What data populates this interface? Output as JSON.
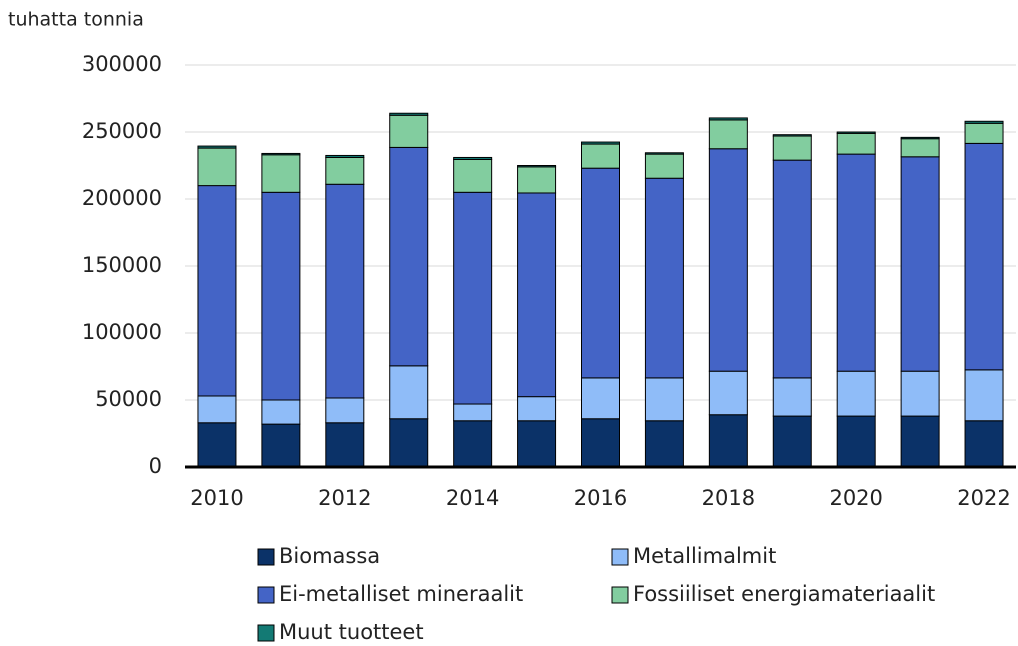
{
  "chart_data": {
    "type": "bar",
    "stacked": true,
    "y_label": "tuhatta tonnia",
    "categories": [
      "2010",
      null,
      "2012",
      null,
      "2014",
      null,
      "2016",
      null,
      "2018",
      null,
      "2020",
      null,
      "2022"
    ],
    "series": [
      {
        "name": "Biomassa",
        "color": "#0b3268",
        "values": [
          33000,
          32000,
          33000,
          36000,
          34500,
          34500,
          36000,
          34500,
          39000,
          38000,
          38000,
          38000,
          34500
        ]
      },
      {
        "name": "Metallimalmit",
        "color": "#8fbcf8",
        "values": [
          20000,
          18000,
          18500,
          39500,
          12500,
          18000,
          30500,
          32000,
          32500,
          28500,
          33500,
          33500,
          38000
        ]
      },
      {
        "name": "Ei-metalliset mineraalit",
        "color": "#4464c6",
        "values": [
          157000,
          155000,
          159500,
          163000,
          158000,
          152000,
          156500,
          149000,
          166000,
          162500,
          162000,
          160000,
          169000
        ]
      },
      {
        "name": "Fossiiliset energiamateriaalit",
        "color": "#82cd9f",
        "values": [
          28000,
          28000,
          20000,
          24000,
          24500,
          19500,
          18000,
          18000,
          21500,
          18000,
          15500,
          13500,
          15000
        ]
      },
      {
        "name": "Muut tuotteet",
        "color": "#137a74",
        "values": [
          1500,
          1000,
          1500,
          1500,
          1500,
          1000,
          1500,
          1000,
          1500,
          1000,
          1000,
          1000,
          1500
        ]
      }
    ],
    "ylim": [
      0,
      300000
    ],
    "yticks": [
      0,
      50000,
      100000,
      150000,
      200000,
      250000,
      300000
    ],
    "grid": true
  }
}
